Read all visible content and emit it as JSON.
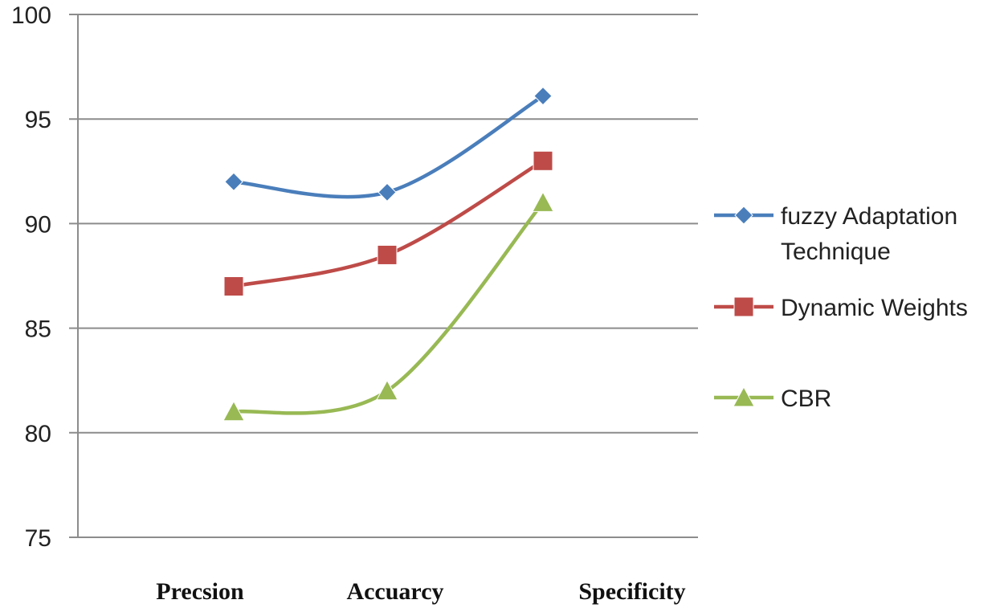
{
  "chart_data": {
    "type": "line",
    "title": "",
    "xlabel": "",
    "ylabel": "",
    "categories": [
      "Precsion",
      "Accuarcy",
      "Specificity"
    ],
    "ylim": [
      75,
      100
    ],
    "yticks": [
      75,
      80,
      85,
      90,
      95,
      100
    ],
    "grid": true,
    "legend_position": "right",
    "smooth": true,
    "series": [
      {
        "name_lines": [
          "fuzzy Adaptation",
          "Technique"
        ],
        "color": "#4a7ebb",
        "marker": "diamond",
        "values": [
          92,
          91.5,
          96.1
        ]
      },
      {
        "name_lines": [
          "Dynamic Weights"
        ],
        "color": "#be4b48",
        "marker": "square",
        "values": [
          87,
          88.5,
          93
        ]
      },
      {
        "name_lines": [
          "CBR"
        ],
        "color": "#98b954",
        "marker": "triangle",
        "values": [
          81,
          82,
          91
        ]
      }
    ]
  }
}
